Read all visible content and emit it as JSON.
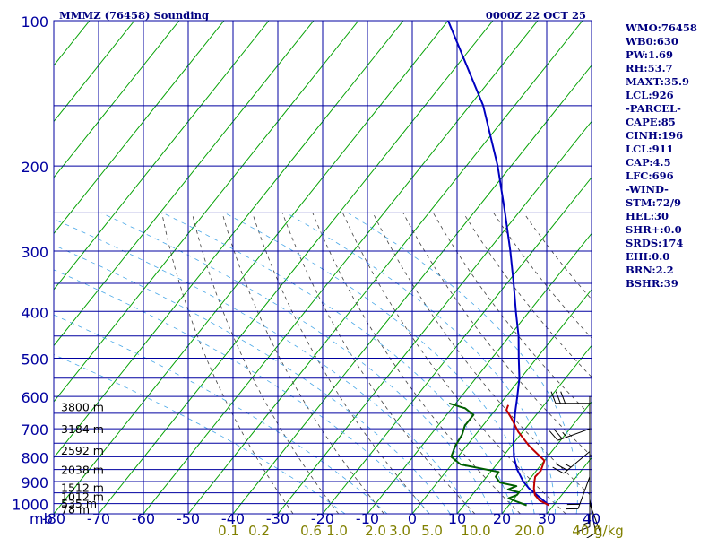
{
  "header": {
    "title": "MMMZ (76458) Sounding",
    "date": "0000Z 22 OCT 25"
  },
  "stats": [
    "WMO:76458",
    "WB0:630",
    "PW:1.69",
    "RH:53.7",
    "MAXT:35.9",
    "LCL:926",
    "-PARCEL-",
    "CAPE:85",
    "CINH:196",
    "LCL:911",
    "CAP:4.5",
    "LFC:696",
    "-WIND-",
    "STM:72/9",
    "HEL:30",
    "SHR+:0.0",
    "SRDS:174",
    "EHI:0.0",
    "BRN:2.2",
    "BSHR:39"
  ],
  "chart_data": {
    "type": "line",
    "pressure_ticks": [
      "100",
      "200",
      "300",
      "400",
      "500",
      "600",
      "700",
      "800",
      "900",
      "1000"
    ],
    "pressure_unit": "mb",
    "temp_ticks": [
      "-80",
      "-70",
      "-60",
      "-50",
      "-40",
      "-30",
      "-20",
      "-10",
      "0",
      "10",
      "20",
      "30",
      "40"
    ],
    "mixing_ratio_ticks": [
      "0.1",
      "0.2",
      "0.6",
      "1.0",
      "2.0",
      "3.0",
      "5.0",
      "10.0",
      "20.0",
      "40.0"
    ],
    "mixing_ratio_unit": "g/kg",
    "height_labels": [
      "3800 m",
      "3184 m",
      "2592 m",
      "2038 m",
      "1512 m",
      "1012 m",
      "535 m",
      "78 m"
    ],
    "height_label_pressures": [
      630,
      700,
      775,
      850,
      925,
      965,
      997,
      1025
    ],
    "temperature_profile": {
      "p": [
        1008,
        985,
        960,
        930,
        900,
        880,
        855,
        815,
        760,
        710,
        665,
        640,
        625
      ],
      "t": [
        29,
        26,
        24,
        22.6,
        21.5,
        20.8,
        21,
        20,
        14,
        9,
        5,
        2.5,
        2
      ]
    },
    "dewpoint_profile": {
      "p": [
        1008,
        990,
        975,
        960,
        948,
        935,
        920,
        905,
        880,
        860,
        830,
        800,
        760,
        720,
        690,
        655,
        635,
        620
      ],
      "t": [
        24,
        21,
        18.7,
        20,
        20,
        17,
        18.3,
        14,
        12,
        11.8,
        2,
        -1.5,
        -2.5,
        -3,
        -4,
        -4,
        -7,
        -11.5
      ]
    },
    "parcel_profile": {
      "p": [
        1008,
        930,
        900,
        850,
        800,
        750,
        700,
        650,
        600,
        550,
        500,
        450,
        400,
        350,
        300,
        250,
        200,
        150,
        100
      ],
      "t": [
        29,
        21.5,
        19,
        15.5,
        12.5,
        10,
        7.5,
        5,
        2.5,
        -0.3,
        -4,
        -8,
        -13,
        -18.5,
        -25,
        -33,
        -43,
        -57,
        -80
      ]
    },
    "wind_barbs": {
      "p": [
        620,
        700,
        780,
        880,
        950,
        980,
        1000
      ],
      "direction_deg": [
        270,
        250,
        230,
        200,
        180,
        170,
        160
      ],
      "speed_kt": [
        30,
        25,
        25,
        20,
        15,
        10,
        10
      ]
    }
  }
}
